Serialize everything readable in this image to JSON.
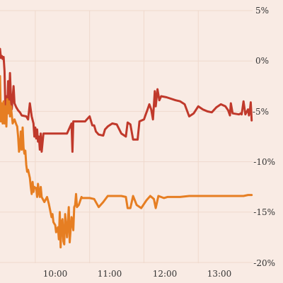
{
  "chart_data": {
    "type": "line",
    "title": "",
    "xlabel": "",
    "ylabel": "",
    "xlim": [
      "09:21",
      "14:00"
    ],
    "ylim": [
      -20,
      5
    ],
    "y_ticks": [
      5,
      0,
      -5,
      -10,
      -15,
      -20
    ],
    "y_tick_labels": [
      "5%",
      "0%",
      "-5%",
      "-10%",
      "-15%",
      "-20%"
    ],
    "x_ticks": [
      "10:00",
      "11:00",
      "12:00",
      "13:00"
    ],
    "grid": true,
    "y_axis_side": "right",
    "legend": "none",
    "colors": {
      "background": "#f9ebe4",
      "grid": "#efd9cd",
      "series1": "#c0392b",
      "series2": "#e67e22"
    },
    "series": [
      {
        "color": "#c0392b",
        "points": [
          [
            "09:21",
            1.2
          ],
          [
            "09:22",
            0.3
          ],
          [
            "09:23",
            0.5
          ],
          [
            "09:24",
            0.2
          ],
          [
            "09:25",
            0.4
          ],
          [
            "09:26",
            -1.0
          ],
          [
            "09:27",
            -5.0
          ],
          [
            "09:28",
            -3.5
          ],
          [
            "09:29",
            -5.2
          ],
          [
            "09:30",
            -2.0
          ],
          [
            "09:31",
            -4.5
          ],
          [
            "09:32",
            -1.2
          ],
          [
            "09:33",
            -3.5
          ],
          [
            "09:34",
            -4.8
          ],
          [
            "09:36",
            -2.5
          ],
          [
            "09:37",
            -4.2
          ],
          [
            "09:39",
            -4.6
          ],
          [
            "09:41",
            -4.9
          ],
          [
            "09:43",
            -5.1
          ],
          [
            "09:45",
            -5.4
          ],
          [
            "09:50",
            -5.5
          ],
          [
            "09:52",
            -5.8
          ],
          [
            "09:54",
            -4.2
          ],
          [
            "09:56",
            -5.5
          ],
          [
            "09:58",
            -6.2
          ],
          [
            "09:59",
            -7.5
          ],
          [
            "10:00",
            -6.6
          ],
          [
            "10:01",
            -7.7
          ],
          [
            "10:02",
            -6.8
          ],
          [
            "10:03",
            -8.0
          ],
          [
            "10:04",
            -7.5
          ],
          [
            "10:05",
            -8.8
          ],
          [
            "10:06",
            -7.2
          ],
          [
            "10:07",
            -9.0
          ],
          [
            "10:09",
            -7.2
          ],
          [
            "10:15",
            -7.2
          ],
          [
            "10:25",
            -7.2
          ],
          [
            "10:35",
            -7.2
          ],
          [
            "10:40",
            -6.2
          ],
          [
            "10:41",
            -9.0
          ],
          [
            "10:42",
            -6.0
          ],
          [
            "10:45",
            -6.0
          ],
          [
            "10:55",
            -6.0
          ],
          [
            "10:57",
            -5.8
          ],
          [
            "11:00",
            -5.5
          ],
          [
            "11:03",
            -6.4
          ],
          [
            "11:05",
            -6.4
          ],
          [
            "11:07",
            -7.0
          ],
          [
            "11:10",
            -7.3
          ],
          [
            "11:15",
            -7.4
          ],
          [
            "11:17",
            -6.8
          ],
          [
            "11:20",
            -6.5
          ],
          [
            "11:25",
            -6.2
          ],
          [
            "11:30",
            -6.3
          ],
          [
            "11:35",
            -7.2
          ],
          [
            "11:40",
            -7.5
          ],
          [
            "11:42",
            -6.1
          ],
          [
            "11:45",
            -6.3
          ],
          [
            "11:48",
            -7.8
          ],
          [
            "11:53",
            -7.8
          ],
          [
            "11:55",
            -6.0
          ],
          [
            "12:00",
            -5.8
          ],
          [
            "12:02",
            -5.3
          ],
          [
            "12:04",
            -4.8
          ],
          [
            "12:06",
            -4.3
          ],
          [
            "12:08",
            -4.8
          ],
          [
            "12:10",
            -5.8
          ],
          [
            "12:12",
            -3.0
          ],
          [
            "12:13",
            -4.5
          ],
          [
            "12:15",
            -2.8
          ],
          [
            "12:17",
            -3.9
          ],
          [
            "12:19",
            -3.5
          ],
          [
            "12:25",
            -3.6
          ],
          [
            "12:35",
            -3.9
          ],
          [
            "12:40",
            -4.0
          ],
          [
            "12:45",
            -4.3
          ],
          [
            "12:50",
            -5.5
          ],
          [
            "12:55",
            -5.2
          ],
          [
            "13:00",
            -4.5
          ],
          [
            "13:05",
            -4.8
          ],
          [
            "13:10",
            -5.0
          ],
          [
            "13:15",
            -5.1
          ],
          [
            "13:20",
            -4.6
          ],
          [
            "13:25",
            -4.3
          ],
          [
            "13:30",
            -4.5
          ],
          [
            "13:33",
            -4.9
          ],
          [
            "13:35",
            -5.4
          ],
          [
            "13:36",
            -4.2
          ],
          [
            "13:38",
            -5.2
          ],
          [
            "13:45",
            -5.3
          ],
          [
            "13:47",
            -5.2
          ],
          [
            "13:48",
            -5.3
          ],
          [
            "13:50",
            -4.0
          ],
          [
            "13:52",
            -5.3
          ],
          [
            "13:55",
            -4.8
          ],
          [
            "13:56",
            -5.4
          ],
          [
            "13:57",
            -4.9
          ],
          [
            "13:58",
            -4.1
          ],
          [
            "13:59",
            -5.9
          ]
        ]
      },
      {
        "color": "#e67e22",
        "points": [
          [
            "09:21",
            -1.5
          ],
          [
            "09:22",
            -6.0
          ],
          [
            "09:23",
            -4.2
          ],
          [
            "09:24",
            -6.2
          ],
          [
            "09:25",
            -4.0
          ],
          [
            "09:26",
            -6.2
          ],
          [
            "09:27",
            -4.5
          ],
          [
            "09:28",
            -6.5
          ],
          [
            "09:29",
            -3.8
          ],
          [
            "09:30",
            -5.2
          ],
          [
            "09:31",
            -4.0
          ],
          [
            "09:32",
            -5.5
          ],
          [
            "09:33",
            -4.5
          ],
          [
            "09:35",
            -6.2
          ],
          [
            "09:37",
            -5.8
          ],
          [
            "09:39",
            -6.3
          ],
          [
            "09:40",
            -6.5
          ],
          [
            "09:41",
            -7.5
          ],
          [
            "09:42",
            -9.0
          ],
          [
            "09:43",
            -8.6
          ],
          [
            "09:44",
            -7.0
          ],
          [
            "09:45",
            -8.8
          ],
          [
            "09:46",
            -6.6
          ],
          [
            "09:47",
            -8.6
          ],
          [
            "09:48",
            -9.2
          ],
          [
            "09:49",
            -8.9
          ],
          [
            "09:50",
            -10.3
          ],
          [
            "09:51",
            -11.0
          ],
          [
            "09:52",
            -10.8
          ],
          [
            "09:53",
            -11.2
          ],
          [
            "09:54",
            -11.6
          ],
          [
            "09:55",
            -12.5
          ],
          [
            "09:56",
            -13.2
          ],
          [
            "09:57",
            -12.0
          ],
          [
            "09:58",
            -13.0
          ],
          [
            "09:59",
            -12.5
          ],
          [
            "10:00",
            -12.6
          ],
          [
            "10:01",
            -12.6
          ],
          [
            "10:02",
            -13.5
          ],
          [
            "10:03",
            -12.2
          ],
          [
            "10:04",
            -13.0
          ],
          [
            "10:05",
            -13.5
          ],
          [
            "10:06",
            -12.5
          ],
          [
            "10:07",
            -13.5
          ],
          [
            "10:10",
            -14.0
          ],
          [
            "10:13",
            -13.5
          ],
          [
            "10:15",
            -14.2
          ],
          [
            "10:18",
            -15.5
          ],
          [
            "10:19",
            -15.2
          ],
          [
            "10:20",
            -16.0
          ],
          [
            "10:22",
            -16.3
          ],
          [
            "10:23",
            -17.0
          ],
          [
            "10:25",
            -16.5
          ],
          [
            "10:26",
            -17.7
          ],
          [
            "10:27",
            -15.0
          ],
          [
            "10:28",
            -18.5
          ],
          [
            "10:29",
            -16.0
          ],
          [
            "10:30",
            -15.7
          ],
          [
            "10:31",
            -17.9
          ],
          [
            "10:32",
            -18.2
          ],
          [
            "10:33",
            -15.2
          ],
          [
            "10:34",
            -16.3
          ],
          [
            "10:35",
            -17.5
          ],
          [
            "10:37",
            -14.5
          ],
          [
            "10:38",
            -18.0
          ],
          [
            "10:40",
            -15.5
          ],
          [
            "10:42",
            -16.8
          ],
          [
            "10:43",
            -14.5
          ],
          [
            "10:44",
            -14.3
          ],
          [
            "10:45",
            -13.2
          ],
          [
            "10:46",
            -14.5
          ],
          [
            "10:48",
            -14.3
          ],
          [
            "10:51",
            -13.5
          ],
          [
            "10:52",
            -13.6
          ],
          [
            "11:00",
            -13.6
          ],
          [
            "11:05",
            -13.7
          ],
          [
            "11:10",
            -14.5
          ],
          [
            "11:15",
            -14.0
          ],
          [
            "11:20",
            -13.4
          ],
          [
            "11:25",
            -13.4
          ],
          [
            "11:30",
            -13.4
          ],
          [
            "11:35",
            -13.4
          ],
          [
            "11:40",
            -13.5
          ],
          [
            "11:42",
            -14.6
          ],
          [
            "11:45",
            -14.6
          ],
          [
            "11:48",
            -13.4
          ],
          [
            "11:52",
            -14.3
          ],
          [
            "11:57",
            -14.6
          ],
          [
            "12:03",
            -13.8
          ],
          [
            "12:07",
            -13.4
          ],
          [
            "12:11",
            -13.7
          ],
          [
            "12:13",
            -14.6
          ],
          [
            "12:16",
            -13.4
          ],
          [
            "12:22",
            -13.6
          ],
          [
            "12:26",
            -13.5
          ],
          [
            "12:30",
            -13.5
          ],
          [
            "12:40",
            -13.5
          ],
          [
            "12:50",
            -13.4
          ],
          [
            "13:00",
            -13.4
          ],
          [
            "13:10",
            -13.4
          ],
          [
            "13:20",
            -13.4
          ],
          [
            "13:30",
            -13.4
          ],
          [
            "13:40",
            -13.4
          ],
          [
            "13:45",
            -13.4
          ],
          [
            "13:50",
            -13.4
          ],
          [
            "13:55",
            -13.3
          ],
          [
            "13:59",
            -13.3
          ]
        ]
      }
    ]
  }
}
